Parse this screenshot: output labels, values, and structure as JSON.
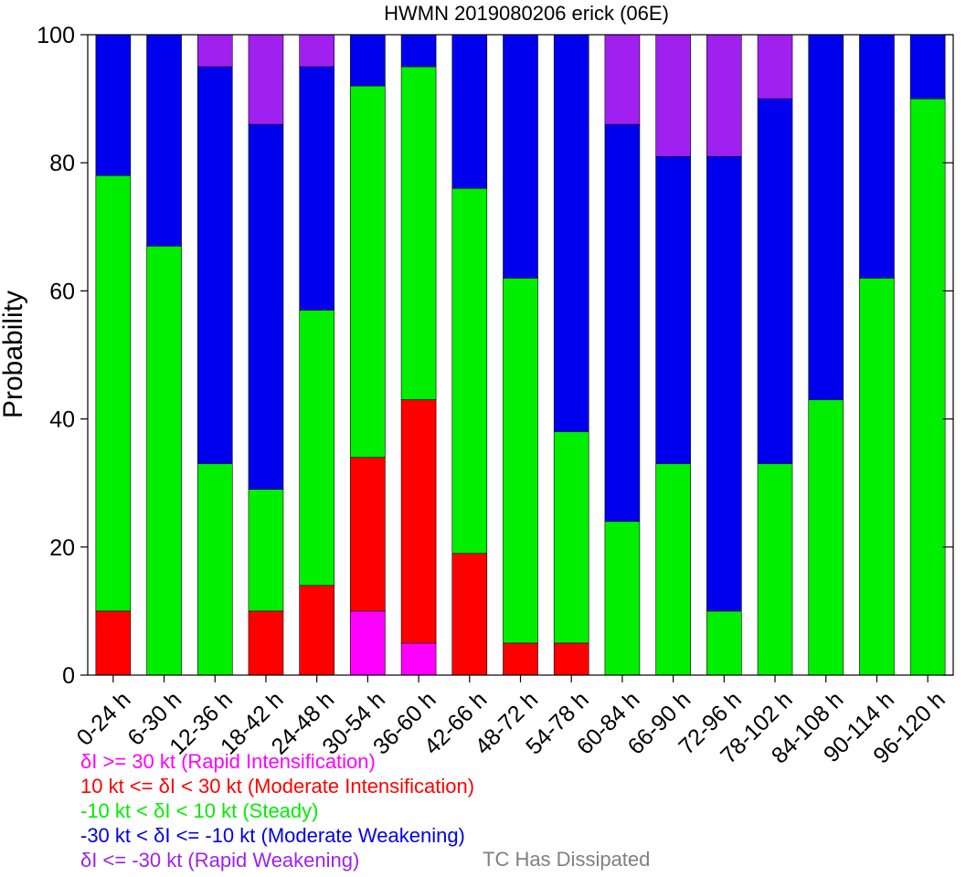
{
  "chart_data": {
    "type": "bar",
    "stacked": true,
    "title": "HWMN 2019080206 erick (06E)",
    "ylabel": "Probability",
    "xlabel": "",
    "ylim": [
      0,
      100
    ],
    "yticks": [
      0,
      20,
      40,
      60,
      80,
      100
    ],
    "categories": [
      "0-24 h",
      "6-30 h",
      "12-36 h",
      "18-42 h",
      "24-48 h",
      "30-54 h",
      "36-60 h",
      "42-66 h",
      "48-72 h",
      "54-78 h",
      "60-84 h",
      "66-90 h",
      "72-96 h",
      "78-102 h",
      "84-108 h",
      "90-114 h",
      "96-120 h"
    ],
    "series": [
      {
        "name": "δI >= 30 kt (Rapid Intensification)",
        "color": "#ff00ff",
        "values": [
          0,
          0,
          0,
          0,
          0,
          10,
          5,
          0,
          0,
          0,
          0,
          0,
          0,
          0,
          0,
          0,
          0
        ]
      },
      {
        "name": "10 kt <= δI < 30 kt (Moderate Intensification)",
        "color": "#ff0000",
        "values": [
          10,
          0,
          0,
          10,
          14,
          24,
          38,
          19,
          5,
          5,
          0,
          0,
          0,
          0,
          0,
          0,
          0
        ]
      },
      {
        "name": "-10 kt < δI < 10 kt (Steady)",
        "color": "#00ee00",
        "values": [
          68,
          67,
          33,
          19,
          43,
          58,
          52,
          57,
          57,
          33,
          24,
          33,
          10,
          33,
          43,
          62,
          90
        ]
      },
      {
        "name": "-30 kt < δI <= -10 kt (Moderate Weakening)",
        "color": "#0000ee",
        "values": [
          22,
          33,
          62,
          57,
          38,
          8,
          5,
          24,
          38,
          62,
          62,
          48,
          71,
          57,
          57,
          38,
          10
        ]
      },
      {
        "name": "δI <= -30 kt (Rapid Weakening)",
        "color": "#a020f0",
        "values": [
          0,
          0,
          5,
          14,
          5,
          0,
          0,
          0,
          0,
          0,
          14,
          19,
          19,
          10,
          0,
          0,
          0
        ]
      }
    ],
    "extra_legend": {
      "label": "TC Has Dissipated",
      "color": "#808080"
    },
    "grid": false,
    "legend_placement": "bottom"
  }
}
